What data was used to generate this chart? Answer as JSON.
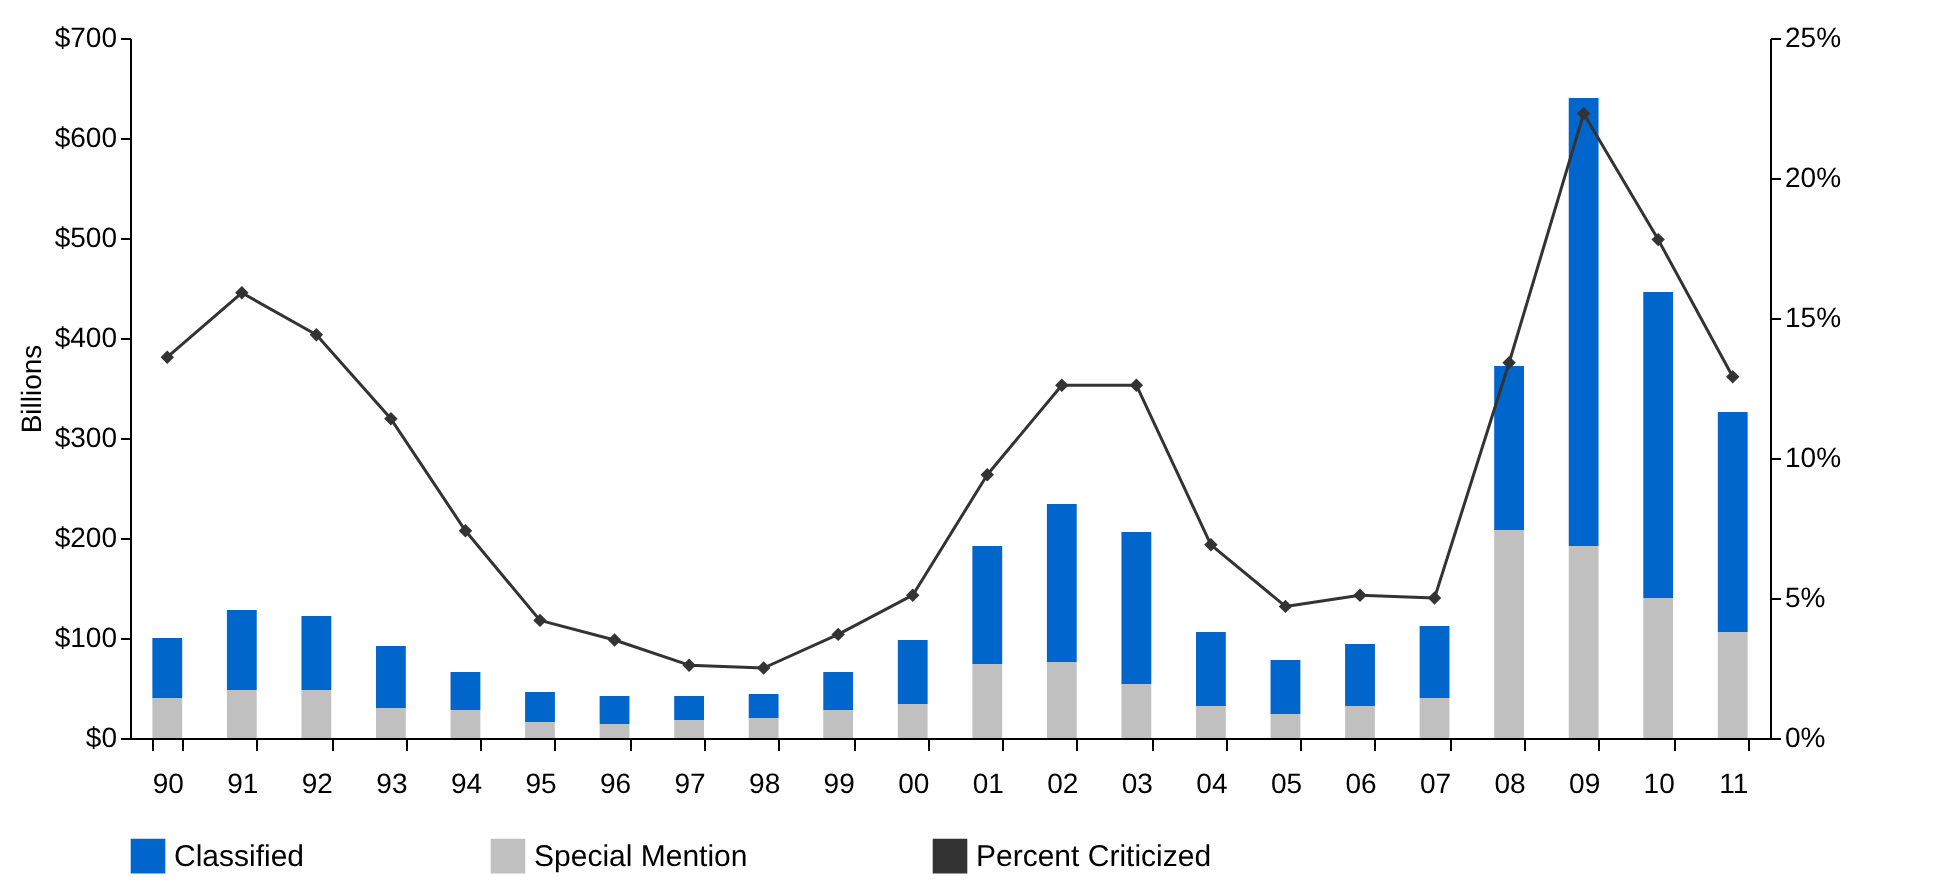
{
  "chart_data": {
    "type": "bar",
    "ylabel": "Billions",
    "stacked": true,
    "legend": "bottom",
    "grid": false,
    "categories": [
      "90",
      "91",
      "92",
      "93",
      "94",
      "95",
      "96",
      "97",
      "98",
      "99",
      "00",
      "01",
      "02",
      "03",
      "04",
      "05",
      "06",
      "07",
      "08",
      "09",
      "10",
      "11"
    ],
    "series": [
      {
        "name": "Special Mention",
        "color": "#c0c0c0",
        "values": [
          40,
          48,
          48,
          30,
          28,
          16,
          14,
          18,
          20,
          28,
          34,
          74,
          76,
          54,
          32,
          24,
          32,
          40,
          208,
          192,
          140,
          106
        ]
      },
      {
        "name": "Classified",
        "color": "#0066cc",
        "values": [
          60,
          80,
          74,
          62,
          38,
          30,
          28,
          24,
          24,
          38,
          64,
          118,
          158,
          152,
          74,
          54,
          62,
          72,
          164,
          448,
          306,
          220
        ]
      },
      {
        "name": "Percent Criticized",
        "type": "line",
        "axis": "y2",
        "color": "#333333",
        "marker": "diamond",
        "values": [
          13.6,
          15.9,
          14.4,
          11.4,
          7.4,
          4.2,
          3.5,
          2.6,
          2.5,
          3.7,
          5.1,
          9.4,
          12.6,
          12.6,
          6.9,
          4.7,
          5.1,
          5.0,
          13.4,
          22.3,
          17.8,
          12.9
        ]
      }
    ],
    "ylim": [
      0,
      700
    ],
    "yticks": [
      {
        "value": 0,
        "label": "$0"
      },
      {
        "value": 100,
        "label": "$100"
      },
      {
        "value": 200,
        "label": "$200"
      },
      {
        "value": 300,
        "label": "$300"
      },
      {
        "value": 400,
        "label": "$400"
      },
      {
        "value": 500,
        "label": "$500"
      },
      {
        "value": 600,
        "label": "$600"
      },
      {
        "value": 700,
        "label": "$700"
      }
    ],
    "y2lim": [
      0,
      25
    ],
    "y2ticks": [
      {
        "value": 0,
        "label": "0%"
      },
      {
        "value": 5,
        "label": "5%"
      },
      {
        "value": 10,
        "label": "10%"
      },
      {
        "value": 15,
        "label": "15%"
      },
      {
        "value": 20,
        "label": "20%"
      },
      {
        "value": 25,
        "label": "25%"
      }
    ]
  }
}
